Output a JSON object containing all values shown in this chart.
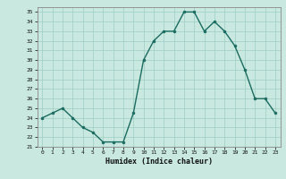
{
  "x": [
    0,
    1,
    2,
    3,
    4,
    5,
    6,
    7,
    8,
    9,
    10,
    11,
    12,
    13,
    14,
    15,
    16,
    17,
    18,
    19,
    20,
    21,
    22,
    23
  ],
  "y": [
    24,
    24.5,
    25,
    24,
    23,
    22.5,
    21.5,
    21.5,
    21.5,
    24.5,
    30,
    32,
    33,
    33,
    35,
    35,
    33,
    34,
    33,
    31.5,
    29,
    26,
    26,
    24.5
  ],
  "xlabel": "Humidex (Indice chaleur)",
  "bg_color": "#c8e8e0",
  "grid_color": "#9ecdc4",
  "line_color": "#1a6b60",
  "marker_color": "#1a6b60",
  "ylim": [
    21,
    35.5
  ],
  "xlim": [
    -0.5,
    23.5
  ],
  "yticks": [
    21,
    22,
    23,
    24,
    25,
    26,
    27,
    28,
    29,
    30,
    31,
    32,
    33,
    34,
    35
  ],
  "xticks": [
    0,
    1,
    2,
    3,
    4,
    5,
    6,
    7,
    8,
    9,
    10,
    11,
    12,
    13,
    14,
    15,
    16,
    17,
    18,
    19,
    20,
    21,
    22,
    23
  ]
}
